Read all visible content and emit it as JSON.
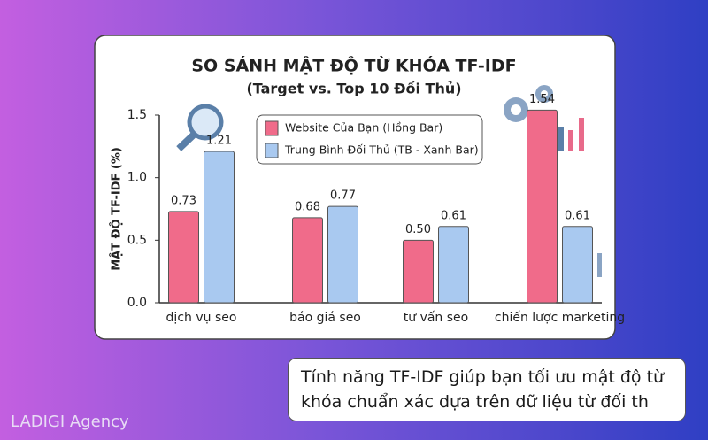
{
  "chart_data": {
    "type": "bar",
    "title": "SO SÁNH MẬT ĐỘ TỪ KHÓA TF-IDF",
    "subtitle": "(Target vs. Top 10 Đối Thủ)",
    "y_label": "MẬT ĐỘ TF-IDF (%)",
    "categories": [
      "dịch vụ seo",
      "báo giá seo",
      "tư vấn seo",
      "chiến lược marketing"
    ],
    "series": [
      {
        "name": "Website Của Bạn (Hồng Bar)",
        "color": "#f06b8a",
        "values": [
          0.73,
          0.68,
          0.5,
          1.54
        ],
        "value_labels": [
          "0.73",
          "0.68",
          "0.50",
          "1.54"
        ]
      },
      {
        "name": "Trung Bình Đối Thủ (TB - Xanh Bar)",
        "color": "#a9c9f0",
        "values": [
          1.21,
          0.77,
          0.61,
          0.61
        ],
        "value_labels": [
          "1.21",
          "0.77",
          "0.61",
          "0.61"
        ]
      }
    ],
    "ylim": [
      0,
      1.5
    ],
    "yticks": [
      {
        "value": 0,
        "label": "0.0"
      },
      {
        "value": 0.5,
        "label": "0.5"
      },
      {
        "value": 1,
        "label": "1.0"
      },
      {
        "value": 1.5,
        "label": "1.5"
      }
    ],
    "legend": "top"
  },
  "callout": {
    "lines": [
      "Tính năng TF-IDF giúp bạn tối ưu mật độ từ",
      "khóa chuẩn xác dựa trên dữ liệu từ đối th"
    ]
  },
  "footer": {
    "brand": "LADIGI Agency"
  }
}
